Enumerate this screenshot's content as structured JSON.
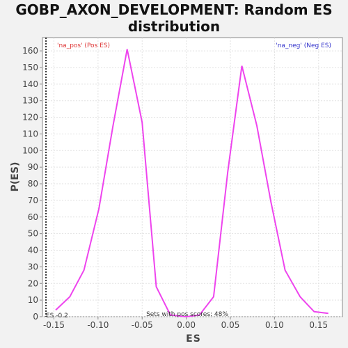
{
  "chart_data": {
    "type": "line",
    "title_line1": "GOBP_AXON_DEVELOPMENT: Random ES",
    "title_line2": "distribution",
    "xlabel": "ES",
    "ylabel": "P(ES)",
    "xlim": [
      -0.163,
      0.177
    ],
    "ylim": [
      0,
      168
    ],
    "x_ticks": [
      -0.15,
      -0.1,
      -0.05,
      0.0,
      0.05,
      0.1,
      0.15
    ],
    "x_tick_labels": [
      "-0.15",
      "-0.10",
      "-0.05",
      "0.00",
      "0.05",
      "0.10",
      "0.15"
    ],
    "y_ticks": [
      0,
      10,
      20,
      30,
      40,
      50,
      60,
      70,
      80,
      90,
      100,
      110,
      120,
      130,
      140,
      150,
      160
    ],
    "y_tick_labels": [
      "0",
      "10",
      "20",
      "30",
      "40",
      "50",
      "60",
      "70",
      "80",
      "90",
      "100",
      "110",
      "120",
      "130",
      "140",
      "150",
      "160"
    ],
    "grid": true,
    "series_color": "#ee44ee",
    "series": [
      {
        "x": [
          -0.148,
          -0.132,
          -0.116,
          -0.099,
          -0.083,
          -0.067,
          -0.05,
          -0.034,
          -0.018,
          0.0,
          0.015,
          0.031,
          0.047,
          0.063,
          0.08,
          0.096,
          0.112,
          0.129,
          0.145,
          0.161
        ],
        "values": [
          4,
          12,
          28,
          65,
          115,
          161,
          117,
          18,
          1,
          0,
          1,
          12,
          87,
          151,
          115,
          69,
          28,
          12,
          3,
          2
        ]
      }
    ],
    "es_marker": {
      "x": -0.159,
      "color": "#333333",
      "label": "ES -0.2"
    },
    "annotations": {
      "pos_label": "'na_pos' (Pos ES)",
      "pos_color": "#dd3333",
      "neg_label": "'na_neg' (Neg ES)",
      "neg_color": "#3333cc",
      "bottom_text": "Sets with pos scores: 48%"
    }
  }
}
